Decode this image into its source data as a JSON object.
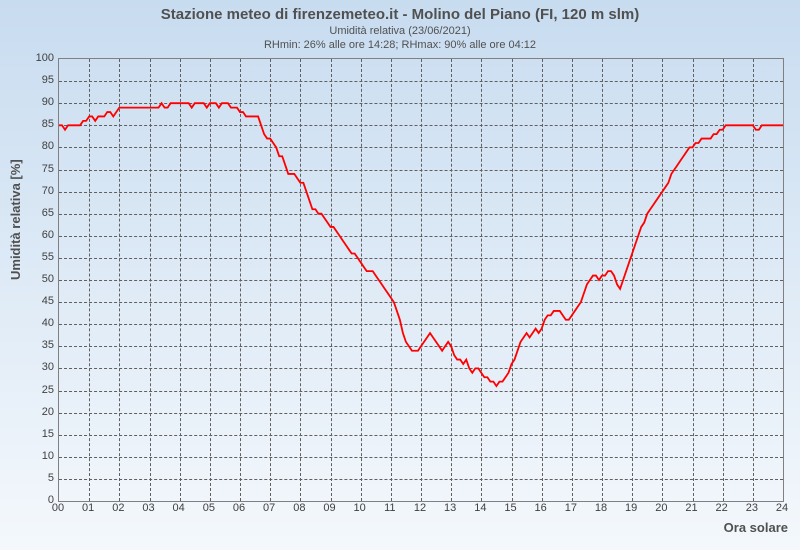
{
  "chart": {
    "type": "line",
    "title": "Stazione meteo di firenzemeteo.it - Molino del Piano (FI, 120 m slm)",
    "subtitle1": "Umidità relativa (23/06/2021)",
    "subtitle2": "RHmin: 26% alle ore 14:28; RHmax: 90% alle ore 04:12",
    "y_label": "Umidità relativa [%]",
    "x_label": "Ora solare",
    "background_gradient_top": "#c8dcf0",
    "background_gradient_bottom": "#f4f8fc",
    "line_color": "#ff0000",
    "line_width": 1.8,
    "grid_color": "#606060",
    "grid_dash": "4,3",
    "text_color": "#505050",
    "ylim": [
      0,
      100
    ],
    "ytick_step": 5,
    "xlim": [
      0,
      24
    ],
    "xtick_step": 1,
    "xtick_labels": [
      "00",
      "01",
      "02",
      "03",
      "04",
      "05",
      "06",
      "07",
      "08",
      "09",
      "10",
      "11",
      "12",
      "13",
      "14",
      "15",
      "16",
      "17",
      "18",
      "19",
      "20",
      "21",
      "22",
      "23",
      "24"
    ],
    "tick_fontsize": 11,
    "label_fontsize": 13,
    "data": [
      [
        0.0,
        85
      ],
      [
        0.1,
        85
      ],
      [
        0.2,
        84
      ],
      [
        0.3,
        85
      ],
      [
        0.4,
        85
      ],
      [
        0.5,
        85
      ],
      [
        0.6,
        85
      ],
      [
        0.7,
        85
      ],
      [
        0.8,
        86
      ],
      [
        0.9,
        86
      ],
      [
        1.0,
        87
      ],
      [
        1.1,
        87
      ],
      [
        1.2,
        86
      ],
      [
        1.3,
        87
      ],
      [
        1.4,
        87
      ],
      [
        1.5,
        87
      ],
      [
        1.6,
        88
      ],
      [
        1.7,
        88
      ],
      [
        1.8,
        87
      ],
      [
        1.9,
        88
      ],
      [
        2.0,
        89
      ],
      [
        2.1,
        89
      ],
      [
        2.2,
        89
      ],
      [
        2.3,
        89
      ],
      [
        2.4,
        89
      ],
      [
        2.5,
        89
      ],
      [
        2.6,
        89
      ],
      [
        2.7,
        89
      ],
      [
        2.8,
        89
      ],
      [
        2.9,
        89
      ],
      [
        3.0,
        89
      ],
      [
        3.1,
        89
      ],
      [
        3.2,
        89
      ],
      [
        3.3,
        89
      ],
      [
        3.4,
        90
      ],
      [
        3.5,
        89
      ],
      [
        3.6,
        89
      ],
      [
        3.7,
        90
      ],
      [
        3.8,
        90
      ],
      [
        3.9,
        90
      ],
      [
        4.0,
        90
      ],
      [
        4.1,
        90
      ],
      [
        4.2,
        90
      ],
      [
        4.3,
        90
      ],
      [
        4.4,
        89
      ],
      [
        4.5,
        90
      ],
      [
        4.6,
        90
      ],
      [
        4.7,
        90
      ],
      [
        4.8,
        90
      ],
      [
        4.9,
        89
      ],
      [
        5.0,
        90
      ],
      [
        5.1,
        90
      ],
      [
        5.2,
        90
      ],
      [
        5.3,
        89
      ],
      [
        5.4,
        90
      ],
      [
        5.5,
        90
      ],
      [
        5.6,
        90
      ],
      [
        5.7,
        89
      ],
      [
        5.8,
        89
      ],
      [
        5.9,
        89
      ],
      [
        6.0,
        88
      ],
      [
        6.1,
        88
      ],
      [
        6.2,
        87
      ],
      [
        6.3,
        87
      ],
      [
        6.4,
        87
      ],
      [
        6.5,
        87
      ],
      [
        6.6,
        87
      ],
      [
        6.7,
        85
      ],
      [
        6.8,
        83
      ],
      [
        6.9,
        82
      ],
      [
        7.0,
        82
      ],
      [
        7.1,
        81
      ],
      [
        7.2,
        80
      ],
      [
        7.3,
        78
      ],
      [
        7.4,
        78
      ],
      [
        7.5,
        76
      ],
      [
        7.6,
        74
      ],
      [
        7.7,
        74
      ],
      [
        7.8,
        74
      ],
      [
        7.9,
        73
      ],
      [
        8.0,
        72
      ],
      [
        8.1,
        72
      ],
      [
        8.2,
        70
      ],
      [
        8.3,
        68
      ],
      [
        8.4,
        66
      ],
      [
        8.5,
        66
      ],
      [
        8.6,
        65
      ],
      [
        8.7,
        65
      ],
      [
        8.8,
        64
      ],
      [
        8.9,
        63
      ],
      [
        9.0,
        62
      ],
      [
        9.1,
        62
      ],
      [
        9.2,
        61
      ],
      [
        9.3,
        60
      ],
      [
        9.4,
        59
      ],
      [
        9.5,
        58
      ],
      [
        9.6,
        57
      ],
      [
        9.7,
        56
      ],
      [
        9.8,
        56
      ],
      [
        9.9,
        55
      ],
      [
        10.0,
        54
      ],
      [
        10.1,
        53
      ],
      [
        10.2,
        52
      ],
      [
        10.3,
        52
      ],
      [
        10.4,
        52
      ],
      [
        10.5,
        51
      ],
      [
        10.6,
        50
      ],
      [
        10.7,
        49
      ],
      [
        10.8,
        48
      ],
      [
        10.9,
        47
      ],
      [
        11.0,
        46
      ],
      [
        11.1,
        45
      ],
      [
        11.2,
        43
      ],
      [
        11.3,
        41
      ],
      [
        11.4,
        38
      ],
      [
        11.5,
        36
      ],
      [
        11.6,
        35
      ],
      [
        11.7,
        34
      ],
      [
        11.8,
        34
      ],
      [
        11.9,
        34
      ],
      [
        12.0,
        35
      ],
      [
        12.1,
        36
      ],
      [
        12.2,
        37
      ],
      [
        12.3,
        38
      ],
      [
        12.4,
        37
      ],
      [
        12.5,
        36
      ],
      [
        12.6,
        35
      ],
      [
        12.7,
        34
      ],
      [
        12.8,
        35
      ],
      [
        12.9,
        36
      ],
      [
        13.0,
        35
      ],
      [
        13.1,
        33
      ],
      [
        13.2,
        32
      ],
      [
        13.3,
        32
      ],
      [
        13.4,
        31
      ],
      [
        13.5,
        32
      ],
      [
        13.6,
        30
      ],
      [
        13.7,
        29
      ],
      [
        13.8,
        30
      ],
      [
        13.9,
        30
      ],
      [
        14.0,
        29
      ],
      [
        14.1,
        28
      ],
      [
        14.2,
        28
      ],
      [
        14.3,
        27
      ],
      [
        14.4,
        27
      ],
      [
        14.5,
        26
      ],
      [
        14.6,
        27
      ],
      [
        14.7,
        27
      ],
      [
        14.8,
        28
      ],
      [
        14.9,
        29
      ],
      [
        15.0,
        31
      ],
      [
        15.1,
        32
      ],
      [
        15.2,
        34
      ],
      [
        15.3,
        36
      ],
      [
        15.4,
        37
      ],
      [
        15.5,
        38
      ],
      [
        15.6,
        37
      ],
      [
        15.7,
        38
      ],
      [
        15.8,
        39
      ],
      [
        15.9,
        38
      ],
      [
        16.0,
        39
      ],
      [
        16.1,
        41
      ],
      [
        16.2,
        42
      ],
      [
        16.3,
        42
      ],
      [
        16.4,
        43
      ],
      [
        16.5,
        43
      ],
      [
        16.6,
        43
      ],
      [
        16.7,
        42
      ],
      [
        16.8,
        41
      ],
      [
        16.9,
        41
      ],
      [
        17.0,
        42
      ],
      [
        17.1,
        43
      ],
      [
        17.2,
        44
      ],
      [
        17.3,
        45
      ],
      [
        17.4,
        47
      ],
      [
        17.5,
        49
      ],
      [
        17.6,
        50
      ],
      [
        17.7,
        51
      ],
      [
        17.8,
        51
      ],
      [
        17.9,
        50
      ],
      [
        18.0,
        51
      ],
      [
        18.1,
        51
      ],
      [
        18.2,
        52
      ],
      [
        18.3,
        52
      ],
      [
        18.4,
        51
      ],
      [
        18.5,
        49
      ],
      [
        18.6,
        48
      ],
      [
        18.7,
        50
      ],
      [
        18.8,
        52
      ],
      [
        18.9,
        54
      ],
      [
        19.0,
        56
      ],
      [
        19.1,
        58
      ],
      [
        19.2,
        60
      ],
      [
        19.3,
        62
      ],
      [
        19.4,
        63
      ],
      [
        19.5,
        65
      ],
      [
        19.6,
        66
      ],
      [
        19.7,
        67
      ],
      [
        19.8,
        68
      ],
      [
        19.9,
        69
      ],
      [
        20.0,
        70
      ],
      [
        20.1,
        71
      ],
      [
        20.2,
        72
      ],
      [
        20.3,
        74
      ],
      [
        20.4,
        75
      ],
      [
        20.5,
        76
      ],
      [
        20.6,
        77
      ],
      [
        20.7,
        78
      ],
      [
        20.8,
        79
      ],
      [
        20.9,
        80
      ],
      [
        21.0,
        80
      ],
      [
        21.1,
        81
      ],
      [
        21.2,
        81
      ],
      [
        21.3,
        82
      ],
      [
        21.4,
        82
      ],
      [
        21.5,
        82
      ],
      [
        21.6,
        82
      ],
      [
        21.7,
        83
      ],
      [
        21.8,
        83
      ],
      [
        21.9,
        84
      ],
      [
        22.0,
        84
      ],
      [
        22.1,
        85
      ],
      [
        22.2,
        85
      ],
      [
        22.3,
        85
      ],
      [
        22.4,
        85
      ],
      [
        22.5,
        85
      ],
      [
        22.6,
        85
      ],
      [
        22.7,
        85
      ],
      [
        22.8,
        85
      ],
      [
        22.9,
        85
      ],
      [
        23.0,
        85
      ],
      [
        23.1,
        84
      ],
      [
        23.2,
        84
      ],
      [
        23.3,
        85
      ],
      [
        23.4,
        85
      ],
      [
        23.5,
        85
      ],
      [
        23.6,
        85
      ],
      [
        23.7,
        85
      ],
      [
        23.8,
        85
      ],
      [
        23.9,
        85
      ],
      [
        24.0,
        85
      ]
    ]
  }
}
